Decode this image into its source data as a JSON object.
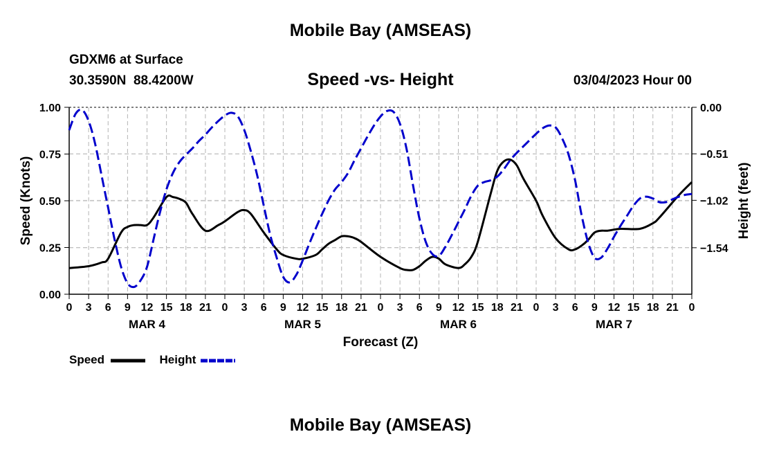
{
  "page": {
    "title_top": "Mobile Bay (AMSEAS)",
    "title_bottom": "Mobile Bay (AMSEAS)",
    "station_line": "GDXM6 at Surface",
    "coords_line": "30.3590N  88.4200W",
    "date_line": "03/04/2023 Hour 00"
  },
  "chart_data": {
    "type": "line",
    "title": "Speed -vs- Height",
    "xlabel": "Forecast (Z)",
    "ylabel_left": "Speed (Knots)",
    "ylabel_right": "Height (feet)",
    "x_range_hours": [
      0,
      96
    ],
    "x_tick_labels": [
      "0",
      "3",
      "6",
      "9",
      "12",
      "15",
      "18",
      "21",
      "0",
      "3",
      "6",
      "9",
      "12",
      "15",
      "18",
      "21",
      "0",
      "3",
      "6",
      "9",
      "12",
      "15",
      "18",
      "21",
      "0",
      "3",
      "6",
      "9",
      "12",
      "15",
      "18",
      "21",
      "0"
    ],
    "day_labels": [
      {
        "label": "MAR 4",
        "hour": 12
      },
      {
        "label": "MAR 5",
        "hour": 36
      },
      {
        "label": "MAR 6",
        "hour": 60
      },
      {
        "label": "MAR 7",
        "hour": 84
      }
    ],
    "left_axis": {
      "range": [
        0,
        1.0
      ],
      "ticks": [
        "0.00",
        "0.25",
        "0.50",
        "0.75",
        "1.00"
      ],
      "tick_values": [
        0,
        0.25,
        0.5,
        0.75,
        1.0
      ]
    },
    "right_axis": {
      "range": [
        -2.05,
        0.0
      ],
      "ticks": [
        "0.00",
        "−0.51",
        "−1.02",
        "−1.54"
      ],
      "tick_values": [
        0.0,
        -0.51,
        -1.02,
        -1.54
      ]
    },
    "legend": [
      {
        "name": "Speed",
        "color": "#000000",
        "dash": "solid"
      },
      {
        "name": "Height",
        "color": "#0000cc",
        "dash": "dashed"
      }
    ],
    "series": [
      {
        "name": "Speed",
        "axis": "left",
        "color": "#000000",
        "x": [
          0,
          3,
          5,
          6,
          8,
          9,
          10,
          11,
          12,
          13,
          15,
          16,
          17,
          18,
          19,
          21,
          23,
          24,
          26,
          27,
          28,
          30,
          32,
          33,
          35,
          36,
          38,
          39,
          40,
          41,
          42,
          43,
          44,
          45,
          48,
          51,
          52,
          53,
          54,
          55,
          56,
          57,
          58,
          60,
          61,
          62,
          63,
          65,
          66,
          67,
          68,
          69,
          70,
          72,
          73,
          75,
          77,
          78,
          79,
          80,
          81,
          82,
          83,
          85,
          88,
          90,
          91,
          94,
          96
        ],
        "y": [
          0.14,
          0.15,
          0.17,
          0.19,
          0.33,
          0.36,
          0.37,
          0.37,
          0.37,
          0.41,
          0.52,
          0.52,
          0.51,
          0.49,
          0.43,
          0.34,
          0.37,
          0.39,
          0.44,
          0.45,
          0.43,
          0.33,
          0.24,
          0.21,
          0.19,
          0.19,
          0.21,
          0.24,
          0.27,
          0.29,
          0.31,
          0.31,
          0.3,
          0.28,
          0.2,
          0.14,
          0.13,
          0.13,
          0.15,
          0.18,
          0.2,
          0.19,
          0.16,
          0.14,
          0.16,
          0.2,
          0.28,
          0.54,
          0.66,
          0.71,
          0.72,
          0.69,
          0.62,
          0.5,
          0.42,
          0.3,
          0.24,
          0.24,
          0.26,
          0.29,
          0.33,
          0.34,
          0.34,
          0.35,
          0.35,
          0.38,
          0.41,
          0.53,
          0.6
        ]
      },
      {
        "name": "Height",
        "axis": "right",
        "color": "#0000cc",
        "x": [
          0,
          1,
          2,
          3,
          4,
          5,
          6,
          7,
          8,
          9,
          10,
          11,
          12,
          13,
          14,
          15,
          16,
          17,
          18,
          19,
          20,
          21,
          22,
          23,
          24,
          25,
          26,
          27,
          28,
          29,
          30,
          31,
          32,
          33,
          34,
          35,
          36,
          37,
          38,
          39,
          40,
          41,
          42,
          43,
          44,
          45,
          46,
          47,
          48,
          49,
          50,
          51,
          52,
          53,
          54,
          55,
          56,
          57,
          58,
          59,
          60,
          61,
          62,
          63,
          64,
          65,
          66,
          67,
          68,
          69,
          70,
          71,
          72,
          73,
          74,
          75,
          76,
          77,
          78,
          79,
          80,
          81,
          82,
          83,
          84,
          85,
          86,
          87,
          88,
          89,
          90,
          91,
          92,
          93,
          94,
          95,
          96
        ],
        "y": [
          -0.25,
          -0.07,
          -0.03,
          -0.15,
          -0.4,
          -0.75,
          -1.1,
          -1.45,
          -1.75,
          -1.93,
          -1.97,
          -1.9,
          -1.75,
          -1.45,
          -1.15,
          -0.9,
          -0.72,
          -0.6,
          -0.52,
          -0.45,
          -0.37,
          -0.3,
          -0.22,
          -0.15,
          -0.09,
          -0.06,
          -0.1,
          -0.25,
          -0.48,
          -0.75,
          -1.08,
          -1.4,
          -1.65,
          -1.86,
          -1.92,
          -1.84,
          -1.68,
          -1.5,
          -1.33,
          -1.17,
          -1.02,
          -0.9,
          -0.82,
          -0.72,
          -0.58,
          -0.45,
          -0.32,
          -0.2,
          -0.1,
          -0.04,
          -0.05,
          -0.18,
          -0.45,
          -0.85,
          -1.22,
          -1.48,
          -1.61,
          -1.63,
          -1.53,
          -1.4,
          -1.26,
          -1.12,
          -0.97,
          -0.86,
          -0.82,
          -0.8,
          -0.76,
          -0.68,
          -0.58,
          -0.5,
          -0.43,
          -0.36,
          -0.29,
          -0.23,
          -0.2,
          -0.22,
          -0.34,
          -0.52,
          -0.8,
          -1.18,
          -1.48,
          -1.65,
          -1.65,
          -1.55,
          -1.42,
          -1.3,
          -1.19,
          -1.08,
          -1.0,
          -0.98,
          -1.0,
          -1.04,
          -1.04,
          -1.01,
          -0.98,
          -0.96,
          -0.95
        ]
      }
    ]
  }
}
